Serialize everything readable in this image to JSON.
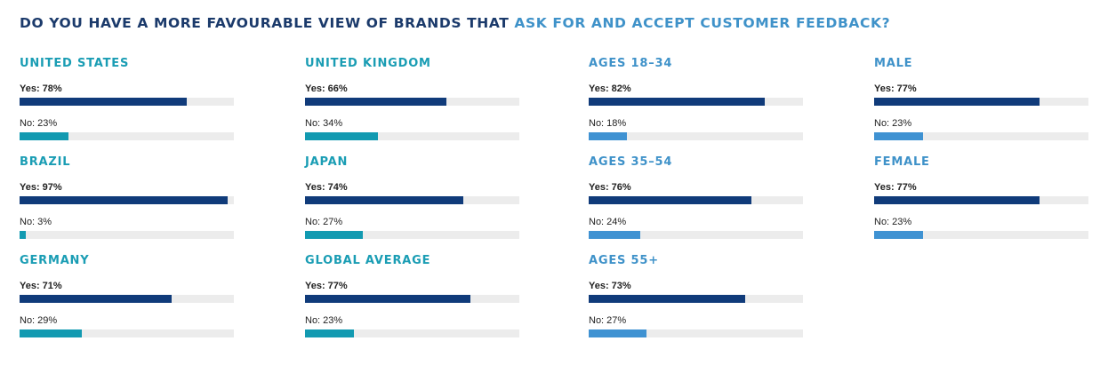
{
  "title": {
    "part1": "DO YOU HAVE A MORE FAVOURABLE VIEW OF BRANDS THAT ",
    "part2": "ASK FOR AND ACCEPT CUSTOMER FEEDBACK?"
  },
  "colors": {
    "title_dark": "#1b3a6b",
    "title_accent": "#3f92c9",
    "yes_bar": "#103b7a",
    "no_bar_country": "#129ab1",
    "no_bar_demographic": "#3f92d2",
    "track": "#ececec",
    "panel_title_country": "#1a9db4",
    "panel_title_demographic": "#3f92c9"
  },
  "chart_data": {
    "type": "bar",
    "orientation": "horizontal",
    "xlim": [
      0,
      100
    ],
    "grid": false,
    "panels": [
      {
        "title": "UNITED STATES",
        "group": "country",
        "yes_label": "Yes: 78%",
        "no_label": "No: 23%",
        "yes": 78,
        "no": 23
      },
      {
        "title": "BRAZIL",
        "group": "country",
        "yes_label": "Yes: 97%",
        "no_label": "No: 3%",
        "yes": 97,
        "no": 3
      },
      {
        "title": "GERMANY",
        "group": "country",
        "yes_label": "Yes: 71%",
        "no_label": "No: 29%",
        "yes": 71,
        "no": 29
      },
      {
        "title": "UNITED KINGDOM",
        "group": "country",
        "yes_label": "Yes: 66%",
        "no_label": "No: 34%",
        "yes": 66,
        "no": 34
      },
      {
        "title": "JAPAN",
        "group": "country",
        "yes_label": "Yes: 74%",
        "no_label": "No: 27%",
        "yes": 74,
        "no": 27
      },
      {
        "title": "GLOBAL AVERAGE",
        "group": "country",
        "yes_label": "Yes: 77%",
        "no_label": "No: 23%",
        "yes": 77,
        "no": 23
      },
      {
        "title": "AGES 18–34",
        "group": "demographic",
        "yes_label": "Yes: 82%",
        "no_label": "No: 18%",
        "yes": 82,
        "no": 18
      },
      {
        "title": "AGES 35–54",
        "group": "demographic",
        "yes_label": "Yes: 76%",
        "no_label": "No: 24%",
        "yes": 76,
        "no": 24
      },
      {
        "title": "AGES 55+",
        "group": "demographic",
        "yes_label": "Yes: 73%",
        "no_label": "No: 27%",
        "yes": 73,
        "no": 27
      },
      {
        "title": "MALE",
        "group": "demographic",
        "yes_label": "Yes: 77%",
        "no_label": "No: 23%",
        "yes": 77,
        "no": 23
      },
      {
        "title": "FEMALE",
        "group": "demographic",
        "yes_label": "Yes: 77%",
        "no_label": "No: 23%",
        "yes": 77,
        "no": 23
      }
    ]
  }
}
